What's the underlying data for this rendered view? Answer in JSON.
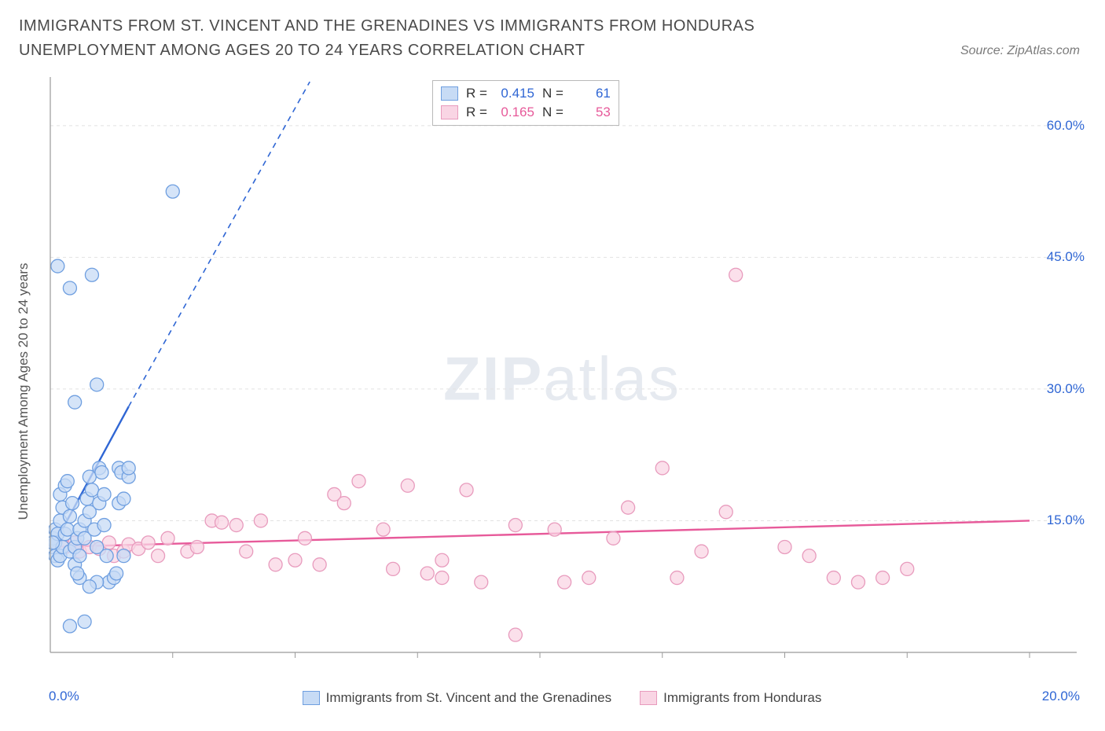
{
  "title": "IMMIGRANTS FROM ST. VINCENT AND THE GRENADINES VS IMMIGRANTS FROM HONDURAS UNEMPLOYMENT AMONG AGES 20 TO 24 YEARS CORRELATION CHART",
  "source": "Source: ZipAtlas.com",
  "ylabel": "Unemployment Among Ages 20 to 24 years",
  "watermark_a": "ZIP",
  "watermark_b": "atlas",
  "chart": {
    "type": "scatter",
    "x_min": 0.0,
    "x_max": 20.0,
    "y_min": 0.0,
    "y_max": 65.0,
    "x_ticks_minor": [
      2.5,
      5.0,
      7.5,
      10.0,
      12.5,
      15.0,
      17.5,
      20.0
    ],
    "y_grid": [
      15.0,
      30.0,
      45.0,
      60.0
    ],
    "y_tick_labels": [
      "15.0%",
      "30.0%",
      "45.0%",
      "60.0%"
    ],
    "x_min_label": "0.0%",
    "x_max_label": "20.0%",
    "grid_color": "#e2e2e2",
    "axis_color": "#9a9a9a",
    "background_color": "#ffffff",
    "series": [
      {
        "name": "Immigrants from St. Vincent and the Grenadines",
        "color_fill": "#c7dbf5",
        "color_stroke": "#6f9fe0",
        "line_color": "#2f66d4",
        "r_label": "R =",
        "r_value": "0.415",
        "n_label": "N =",
        "n_value": "61",
        "trend_solid": {
          "x1": 0.05,
          "y1": 12.0,
          "x2": 1.6,
          "y2": 28.0
        },
        "trend_dash": {
          "x1": 1.6,
          "y1": 28.0,
          "x2": 5.3,
          "y2": 65.0
        },
        "points": [
          [
            0.05,
            12.0
          ],
          [
            0.05,
            13.0
          ],
          [
            0.1,
            11.0
          ],
          [
            0.1,
            12.5
          ],
          [
            0.1,
            14.0
          ],
          [
            0.15,
            13.5
          ],
          [
            0.15,
            10.5
          ],
          [
            0.2,
            11.0
          ],
          [
            0.2,
            15.0
          ],
          [
            0.2,
            18.0
          ],
          [
            0.25,
            12.0
          ],
          [
            0.25,
            16.5
          ],
          [
            0.3,
            13.5
          ],
          [
            0.3,
            19.0
          ],
          [
            0.35,
            14.0
          ],
          [
            0.4,
            15.5
          ],
          [
            0.4,
            11.5
          ],
          [
            0.45,
            17.0
          ],
          [
            0.5,
            10.0
          ],
          [
            0.5,
            12.0
          ],
          [
            0.55,
            13.0
          ],
          [
            0.6,
            14.0
          ],
          [
            0.6,
            11.0
          ],
          [
            0.7,
            13.0
          ],
          [
            0.7,
            15.0
          ],
          [
            0.75,
            17.5
          ],
          [
            0.8,
            20.0
          ],
          [
            0.8,
            16.0
          ],
          [
            0.85,
            18.5
          ],
          [
            0.9,
            14.0
          ],
          [
            0.95,
            12.0
          ],
          [
            1.0,
            21.0
          ],
          [
            1.0,
            17.0
          ],
          [
            1.05,
            20.5
          ],
          [
            1.1,
            14.5
          ],
          [
            1.1,
            18.0
          ],
          [
            1.15,
            11.0
          ],
          [
            1.2,
            8.0
          ],
          [
            1.3,
            8.5
          ],
          [
            1.35,
            9.0
          ],
          [
            1.4,
            17.0
          ],
          [
            1.4,
            21.0
          ],
          [
            1.45,
            20.5
          ],
          [
            1.5,
            17.5
          ],
          [
            1.5,
            11.0
          ],
          [
            0.5,
            28.5
          ],
          [
            0.4,
            41.5
          ],
          [
            0.15,
            44.0
          ],
          [
            0.85,
            43.0
          ],
          [
            0.95,
            30.5
          ],
          [
            0.35,
            19.5
          ],
          [
            1.6,
            20.0
          ],
          [
            1.6,
            21.0
          ],
          [
            0.95,
            8.0
          ],
          [
            0.6,
            8.5
          ],
          [
            0.55,
            9.0
          ],
          [
            2.5,
            52.5
          ],
          [
            0.8,
            7.5
          ],
          [
            0.4,
            3.0
          ],
          [
            0.7,
            3.5
          ],
          [
            0.05,
            12.5
          ]
        ]
      },
      {
        "name": "Immigrants from Honduras",
        "color_fill": "#f9d5e4",
        "color_stroke": "#e89bbd",
        "line_color": "#e75a9a",
        "r_label": "R =",
        "r_value": "0.165",
        "n_label": "N =",
        "n_value": "53",
        "trend_solid": {
          "x1": 0.0,
          "y1": 12.0,
          "x2": 20.0,
          "y2": 15.0
        },
        "points": [
          [
            0.3,
            12.0
          ],
          [
            0.5,
            12.5
          ],
          [
            0.6,
            11.5
          ],
          [
            0.8,
            12.0
          ],
          [
            1.0,
            11.8
          ],
          [
            1.2,
            12.5
          ],
          [
            1.3,
            11.0
          ],
          [
            1.5,
            11.5
          ],
          [
            1.6,
            12.3
          ],
          [
            1.8,
            11.8
          ],
          [
            2.0,
            12.5
          ],
          [
            2.2,
            11.0
          ],
          [
            2.4,
            13.0
          ],
          [
            2.8,
            11.5
          ],
          [
            3.0,
            12.0
          ],
          [
            3.3,
            15.0
          ],
          [
            3.5,
            14.8
          ],
          [
            3.8,
            14.5
          ],
          [
            4.0,
            11.5
          ],
          [
            4.3,
            15.0
          ],
          [
            4.6,
            10.0
          ],
          [
            5.0,
            10.5
          ],
          [
            5.2,
            13.0
          ],
          [
            5.5,
            10.0
          ],
          [
            5.8,
            18.0
          ],
          [
            6.0,
            17.0
          ],
          [
            6.3,
            19.5
          ],
          [
            6.8,
            14.0
          ],
          [
            7.0,
            9.5
          ],
          [
            7.3,
            19.0
          ],
          [
            7.7,
            9.0
          ],
          [
            8.0,
            10.5
          ],
          [
            8.0,
            8.5
          ],
          [
            8.5,
            18.5
          ],
          [
            8.8,
            8.0
          ],
          [
            9.5,
            14.5
          ],
          [
            9.5,
            2.0
          ],
          [
            10.3,
            14.0
          ],
          [
            10.5,
            8.0
          ],
          [
            11.0,
            8.5
          ],
          [
            11.5,
            13.0
          ],
          [
            11.8,
            16.5
          ],
          [
            12.5,
            21.0
          ],
          [
            12.8,
            8.5
          ],
          [
            13.3,
            11.5
          ],
          [
            13.8,
            16.0
          ],
          [
            14.0,
            43.0
          ],
          [
            15.0,
            12.0
          ],
          [
            15.5,
            11.0
          ],
          [
            16.0,
            8.5
          ],
          [
            16.5,
            8.0
          ],
          [
            17.5,
            9.5
          ],
          [
            17.0,
            8.5
          ]
        ]
      }
    ]
  },
  "legend_bottom": [
    "Immigrants from St. Vincent and the Grenadines",
    "Immigrants from Honduras"
  ]
}
